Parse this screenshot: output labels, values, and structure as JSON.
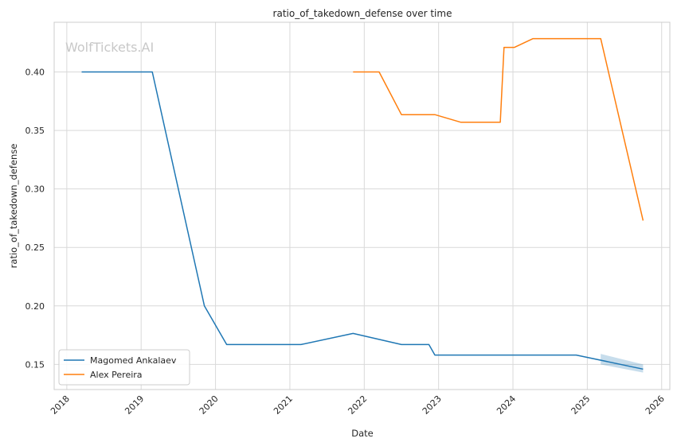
{
  "watermark": "WolfTickets.AI",
  "chart_data": {
    "type": "line",
    "title": "ratio_of_takedown_defense over time",
    "xlabel": "Date",
    "ylabel": "ratio_of_takedown_defense",
    "x_ticks": [
      "2018",
      "2019",
      "2020",
      "2021",
      "2022",
      "2023",
      "2024",
      "2025",
      "2026"
    ],
    "y_ticks": [
      "0.15",
      "0.20",
      "0.25",
      "0.30",
      "0.35",
      "0.40"
    ],
    "xlim": [
      2017.83,
      2026.11
    ],
    "ylim": [
      0.1285,
      0.4425
    ],
    "grid": true,
    "legend_position": "lower-left",
    "series": [
      {
        "name": "Magomed Ankalaev",
        "color": "#1f77b4",
        "points": [
          [
            2018.2,
            0.4
          ],
          [
            2019.15,
            0.4
          ],
          [
            2019.85,
            0.2
          ],
          [
            2020.15,
            0.167
          ],
          [
            2021.15,
            0.167
          ],
          [
            2021.85,
            0.1765
          ],
          [
            2022.5,
            0.167
          ],
          [
            2022.87,
            0.167
          ],
          [
            2022.95,
            0.158
          ],
          [
            2024.85,
            0.158
          ],
          [
            2025.75,
            0.146
          ]
        ],
        "band": {
          "x": [
            2025.18,
            2025.75
          ],
          "lower": [
            0.15,
            0.143
          ],
          "upper": [
            0.159,
            0.15
          ]
        }
      },
      {
        "name": "Alex Pereira",
        "color": "#ff7f0e",
        "points": [
          [
            2021.85,
            0.4
          ],
          [
            2022.2,
            0.4
          ],
          [
            2022.5,
            0.3635
          ],
          [
            2022.95,
            0.3635
          ],
          [
            2023.3,
            0.357
          ],
          [
            2023.83,
            0.357
          ],
          [
            2023.88,
            0.421
          ],
          [
            2024.02,
            0.421
          ],
          [
            2024.27,
            0.4285
          ],
          [
            2025.18,
            0.4285
          ],
          [
            2025.75,
            0.273
          ]
        ]
      }
    ]
  }
}
